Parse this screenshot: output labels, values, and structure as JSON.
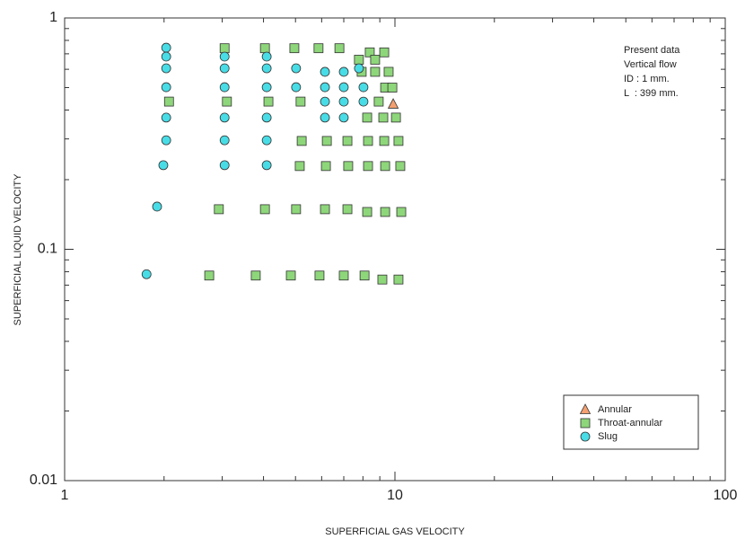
{
  "chart_data": {
    "type": "scatter",
    "x_label": "SUPERFICIAL GAS VELOCITY",
    "y_label": "SUPERFICIAL LIQUID VELOCITY",
    "log_x": true,
    "log_y": true,
    "xlim": [
      1,
      100
    ],
    "xticks": [
      1,
      10,
      100
    ],
    "ylim": [
      0.01,
      1
    ],
    "yticks": [
      0.01,
      0.1,
      1
    ],
    "legend": "lower right",
    "annotation": [
      "Present data",
      "Vertical flow",
      "ID : 1 mm.",
      "L  : 399 mm."
    ],
    "series": [
      {
        "name": "Annular",
        "marker": "triangle",
        "color": "#f4a070",
        "x": [
          9.88
        ],
        "values": [
          0.424
        ]
      },
      {
        "name": "Throat-annular",
        "marker": "square",
        "color": "#8ed67a",
        "x": [
          3.05,
          4.04,
          4.96,
          5.87,
          6.79,
          8.39,
          9.28,
          7.78,
          8.71,
          7.93,
          8.71,
          9.57,
          9.34,
          9.82,
          2.07,
          3.1,
          4.14,
          5.18,
          8.93,
          8.24,
          9.22,
          10.07,
          5.22,
          6.22,
          7.18,
          8.29,
          9.28,
          10.25,
          5.15,
          6.18,
          7.22,
          8.29,
          9.34,
          10.38,
          2.93,
          4.04,
          5.02,
          6.14,
          7.18,
          8.24,
          9.34,
          10.45,
          2.74,
          3.79,
          4.84,
          5.91,
          7.0,
          8.09,
          9.16,
          10.25
        ],
        "values": [
          0.74,
          0.74,
          0.74,
          0.74,
          0.74,
          0.71,
          0.71,
          0.66,
          0.66,
          0.585,
          0.585,
          0.585,
          0.5,
          0.5,
          0.435,
          0.435,
          0.435,
          0.435,
          0.435,
          0.371,
          0.371,
          0.371,
          0.294,
          0.294,
          0.294,
          0.294,
          0.294,
          0.294,
          0.229,
          0.229,
          0.229,
          0.229,
          0.229,
          0.229,
          0.149,
          0.149,
          0.149,
          0.149,
          0.149,
          0.145,
          0.145,
          0.145,
          0.077,
          0.077,
          0.077,
          0.077,
          0.077,
          0.077,
          0.074,
          0.074
        ]
      },
      {
        "name": "Slug",
        "marker": "circle",
        "color": "#48dde6",
        "x": [
          2.03,
          2.03,
          2.03,
          2.03,
          2.03,
          2.03,
          1.99,
          1.905,
          1.77,
          3.05,
          3.05,
          3.05,
          3.05,
          3.05,
          3.05,
          4.09,
          4.09,
          4.09,
          4.09,
          4.09,
          4.09,
          5.02,
          5.02,
          6.14,
          6.14,
          6.14,
          6.14,
          7.0,
          7.0,
          7.0,
          7.0,
          7.78,
          8.03,
          8.03
        ],
        "values": [
          0.744,
          0.681,
          0.606,
          0.502,
          0.371,
          0.296,
          0.231,
          0.153,
          0.078,
          0.681,
          0.606,
          0.502,
          0.371,
          0.296,
          0.231,
          0.681,
          0.606,
          0.502,
          0.371,
          0.296,
          0.231,
          0.606,
          0.502,
          0.585,
          0.502,
          0.435,
          0.371,
          0.585,
          0.502,
          0.435,
          0.371,
          0.606,
          0.502,
          0.435
        ]
      }
    ]
  }
}
